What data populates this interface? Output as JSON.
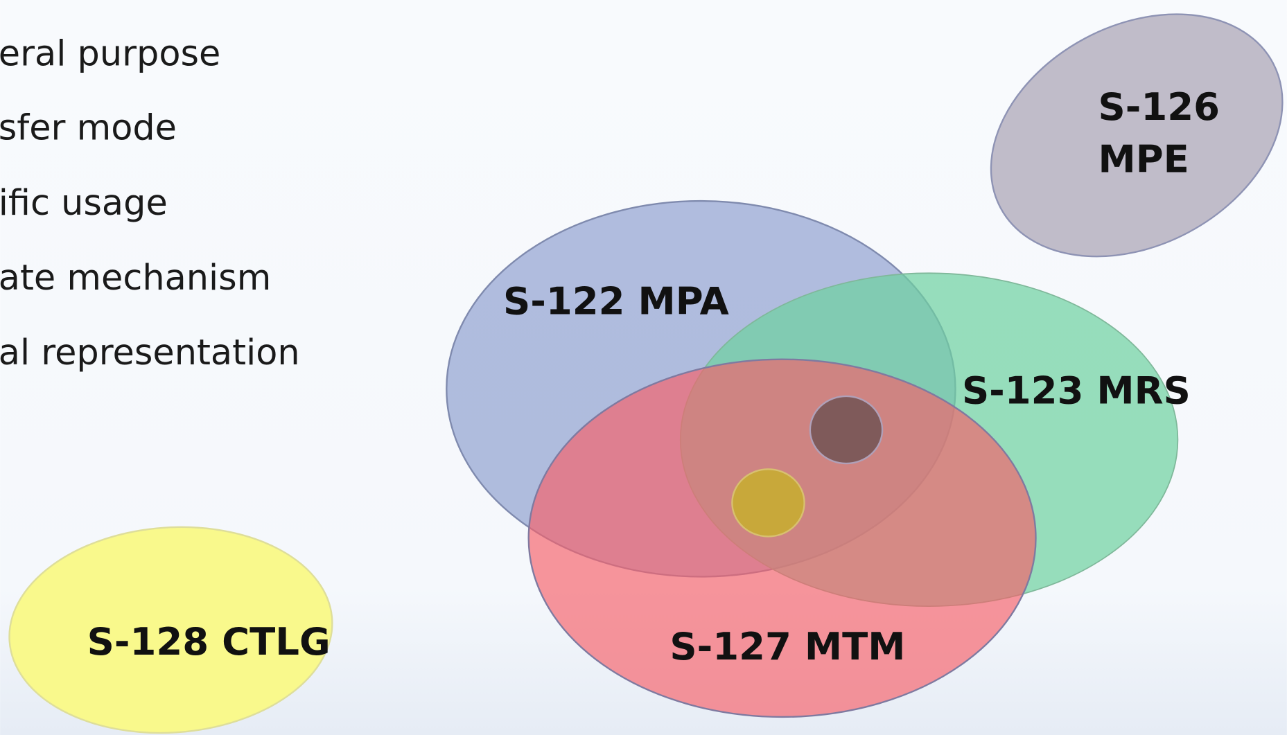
{
  "bullets": [
    "eral purpose",
    "sfer mode",
    "ific usage",
    "ate mechanism",
    "al representation"
  ],
  "sets": {
    "s126": {
      "lines": [
        "S-126",
        "MPE"
      ]
    },
    "s122": {
      "label": "S-122 MPA"
    },
    "s123": {
      "label": "S-123 MRS"
    },
    "s127": {
      "label": "S-127 MTM"
    },
    "s128": {
      "label": "S-128 CTLG"
    }
  }
}
